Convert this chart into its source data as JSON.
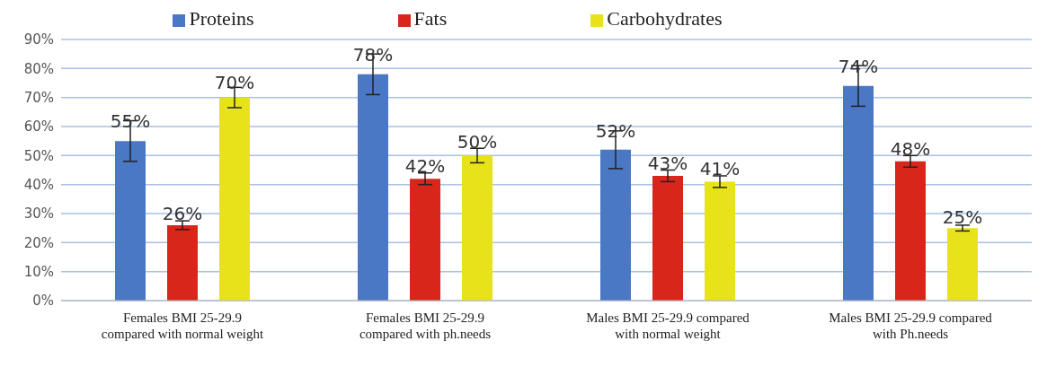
{
  "chart_data": {
    "type": "bar",
    "categories": [
      "Females BMI 25-29.9 compared with normal weight",
      "Females BMI 25-29.9 compared with ph.needs",
      "Males BMI 25-29.9 compared with normal weight",
      "Males BMI 25-29.9 compared with Ph.needs"
    ],
    "series": [
      {
        "name": "Proteins",
        "color": "#4a78c4",
        "values": [
          55,
          78,
          52,
          74
        ],
        "errors": [
          7,
          7,
          6.5,
          7
        ],
        "value_labels": [
          "55%",
          "78%",
          "52%",
          "74%"
        ]
      },
      {
        "name": "Fats",
        "color": "#d8261a",
        "values": [
          26,
          42,
          43,
          48
        ],
        "errors": [
          1.5,
          2,
          2,
          2
        ],
        "value_labels": [
          "26%",
          "42%",
          "43%",
          "48%"
        ]
      },
      {
        "name": "Carbohydrates",
        "color": "#e8e21a",
        "values": [
          70,
          50,
          41,
          25
        ],
        "errors": [
          3.5,
          2.5,
          2,
          1
        ],
        "value_labels": [
          "70%",
          "50%",
          "41%",
          "25%"
        ]
      }
    ],
    "ylim": [
      0,
      90
    ],
    "yticks": [
      {
        "value": 0,
        "label": "0%"
      },
      {
        "value": 10,
        "label": "10%"
      },
      {
        "value": 20,
        "label": "20%"
      },
      {
        "value": 30,
        "label": "30%"
      },
      {
        "value": 40,
        "label": "40%"
      },
      {
        "value": 50,
        "label": "50%"
      },
      {
        "value": 60,
        "label": "60%"
      },
      {
        "value": 70,
        "label": "70%"
      },
      {
        "value": 80,
        "label": "80%"
      },
      {
        "value": 90,
        "label": "90%"
      }
    ],
    "grid": "y",
    "legend": "top"
  }
}
